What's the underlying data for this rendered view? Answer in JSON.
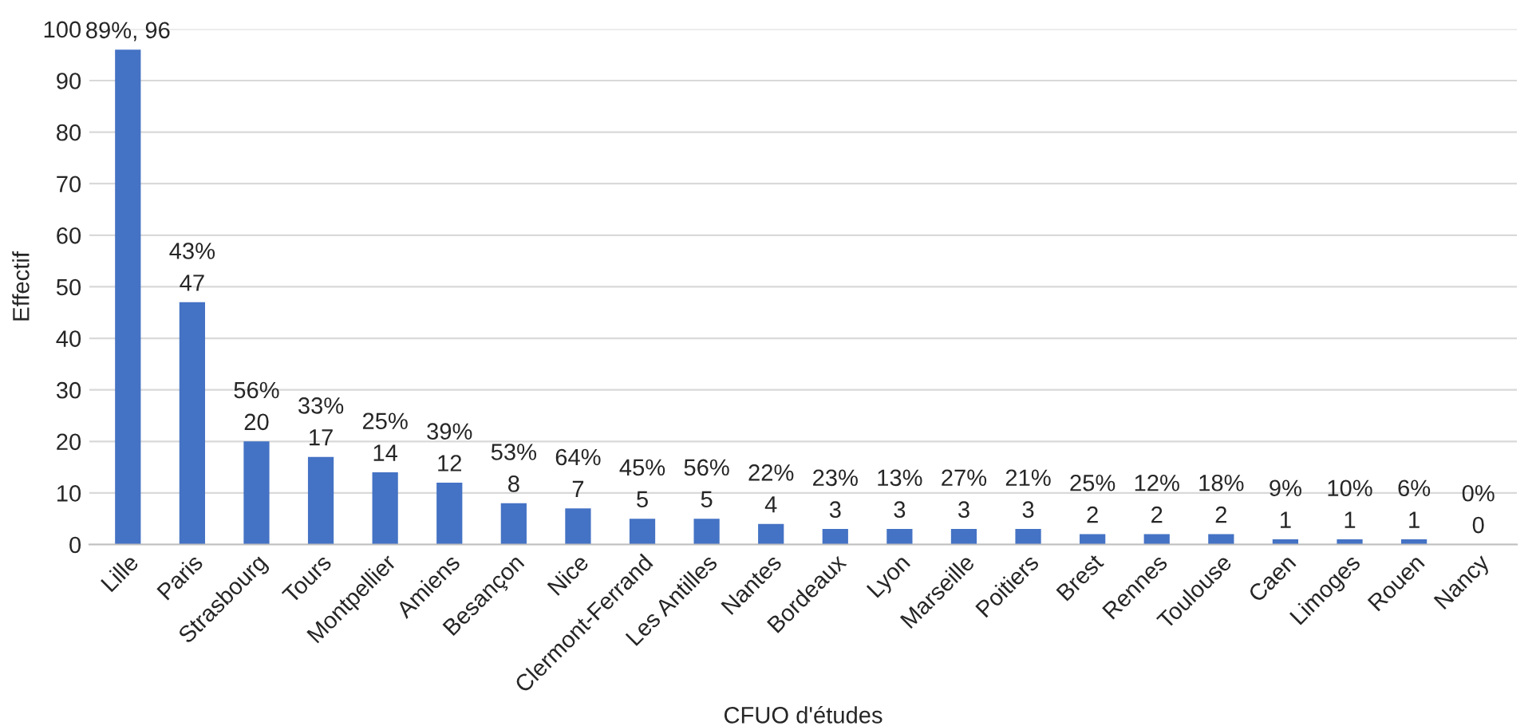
{
  "chart_data": {
    "type": "bar",
    "xlabel": "CFUO d'études",
    "ylabel": "Effectif",
    "categories": [
      "Lille",
      "Paris",
      "Strasbourg",
      "Tours",
      "Montpellier",
      "Amiens",
      "Besançon",
      "Nice",
      "Clermont-Ferrand",
      "Les Antilles",
      "Nantes",
      "Bordeaux",
      "Lyon",
      "Marseille",
      "Poitiers",
      "Brest",
      "Rennes",
      "Toulouse",
      "Caen",
      "Limoges",
      "Rouen",
      "Nancy"
    ],
    "values": [
      96,
      47,
      20,
      17,
      14,
      12,
      8,
      7,
      5,
      5,
      4,
      3,
      3,
      3,
      3,
      2,
      2,
      2,
      1,
      1,
      1,
      0
    ],
    "value_labels": [
      "89%, 96",
      "43%\n47",
      "56%\n20",
      "33%\n17",
      "25%\n14",
      "39%\n12",
      "53%\n8",
      "64%\n7",
      "45%\n5",
      "56%\n5",
      "22%\n4",
      "23%\n3",
      "13%\n3",
      "27%\n3",
      "21%\n3",
      "25%\n2",
      "12%\n2",
      "18%\n2",
      "9%\n1",
      "10%\n1",
      "6%\n1",
      "0%\n0"
    ],
    "color": "#4472c4",
    "ylim": [
      0,
      100
    ],
    "yticks": [
      0,
      10,
      20,
      30,
      40,
      50,
      60,
      70,
      80,
      90,
      100
    ],
    "grid": "y"
  }
}
